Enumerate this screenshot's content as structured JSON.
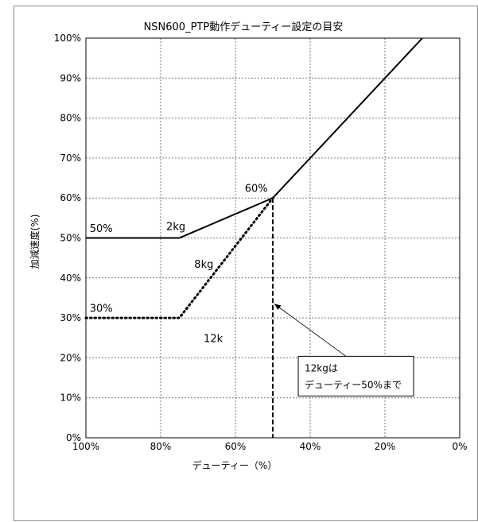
{
  "chart_data": {
    "type": "line",
    "title": "NSN600_PTP動作デューティー設定の目安",
    "xlabel": "デューティー（%）",
    "ylabel": "加減速度(%)",
    "xlim": [
      100,
      0
    ],
    "ylim": [
      0,
      100
    ],
    "x_reversed": true,
    "grid": true,
    "x_ticks": [
      "100%",
      "80%",
      "60%",
      "40%",
      "20%",
      "0%"
    ],
    "x_tick_values": [
      100,
      80,
      60,
      40,
      20,
      0
    ],
    "y_ticks": [
      "0%",
      "10%",
      "20%",
      "30%",
      "40%",
      "50%",
      "60%",
      "70%",
      "80%",
      "90%",
      "100%"
    ],
    "y_tick_values": [
      0,
      10,
      20,
      30,
      40,
      50,
      60,
      70,
      80,
      90,
      100
    ],
    "series": [
      {
        "name": "2kg",
        "style": "solid",
        "points": [
          [
            100,
            50
          ],
          [
            75,
            50
          ],
          [
            50,
            60
          ],
          [
            10,
            100
          ]
        ]
      },
      {
        "name": "8kg",
        "style": "dotted",
        "points": [
          [
            100,
            30
          ],
          [
            75,
            30
          ],
          [
            50,
            60
          ]
        ]
      },
      {
        "name": "12k",
        "style": "dashed",
        "points": [
          [
            50,
            60
          ],
          [
            50,
            0
          ]
        ]
      }
    ],
    "annotations": [
      {
        "text": "50%",
        "x": 99,
        "y": 51.5
      },
      {
        "text": "2kg",
        "x": 78.5,
        "y": 52
      },
      {
        "text": "60%",
        "x": 57.5,
        "y": 61.5
      },
      {
        "text": "8kg",
        "x": 71,
        "y": 42.5
      },
      {
        "text": "30%",
        "x": 99,
        "y": 31.5
      },
      {
        "text": "12k",
        "x": 68.5,
        "y": 24
      }
    ],
    "callout": {
      "lines": [
        "12kgは",
        "デューティー50%まで"
      ],
      "arrow_to": [
        50,
        33.5
      ],
      "arrow_from": [
        30,
        20
      ]
    },
    "colors": {
      "line": "#000000",
      "grid": "#7a7a7a",
      "frame": "#8a8a8a"
    }
  }
}
